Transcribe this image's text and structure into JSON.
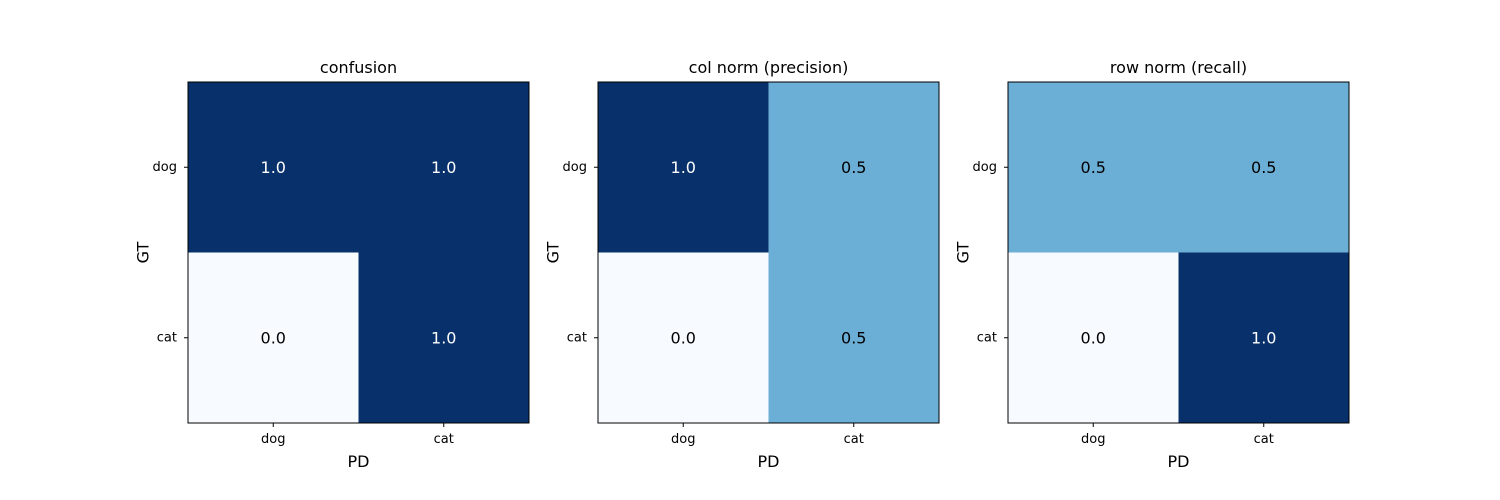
{
  "chart_data": [
    {
      "type": "heatmap",
      "title": "confusion",
      "xlabel": "PD",
      "ylabel": "GT",
      "x_categories": [
        "dog",
        "cat"
      ],
      "y_categories": [
        "dog",
        "cat"
      ],
      "values": [
        [
          1.0,
          1.0
        ],
        [
          0.0,
          1.0
        ]
      ],
      "value_labels": [
        [
          "1.0",
          "1.0"
        ],
        [
          "0.0",
          "1.0"
        ]
      ],
      "colormap": "Blues",
      "grid": false
    },
    {
      "type": "heatmap",
      "title": "col norm (precision)",
      "xlabel": "PD",
      "ylabel": "GT",
      "x_categories": [
        "dog",
        "cat"
      ],
      "y_categories": [
        "dog",
        "cat"
      ],
      "values": [
        [
          1.0,
          0.5
        ],
        [
          0.0,
          0.5
        ]
      ],
      "value_labels": [
        [
          "1.0",
          "0.5"
        ],
        [
          "0.0",
          "0.5"
        ]
      ],
      "colormap": "Blues",
      "grid": false
    },
    {
      "type": "heatmap",
      "title": "row norm (recall)",
      "xlabel": "PD",
      "ylabel": "GT",
      "x_categories": [
        "dog",
        "cat"
      ],
      "y_categories": [
        "dog",
        "cat"
      ],
      "values": [
        [
          0.5,
          0.5
        ],
        [
          0.0,
          1.0
        ]
      ],
      "value_labels": [
        [
          "0.5",
          "0.5"
        ],
        [
          "0.0",
          "1.0"
        ]
      ],
      "colormap": "Blues",
      "grid": false
    }
  ],
  "colors": {
    "low": "#f7fbff",
    "mid": "#6baed6",
    "high": "#08306b",
    "text_dark": "#000000",
    "text_light": "#ffffff"
  }
}
